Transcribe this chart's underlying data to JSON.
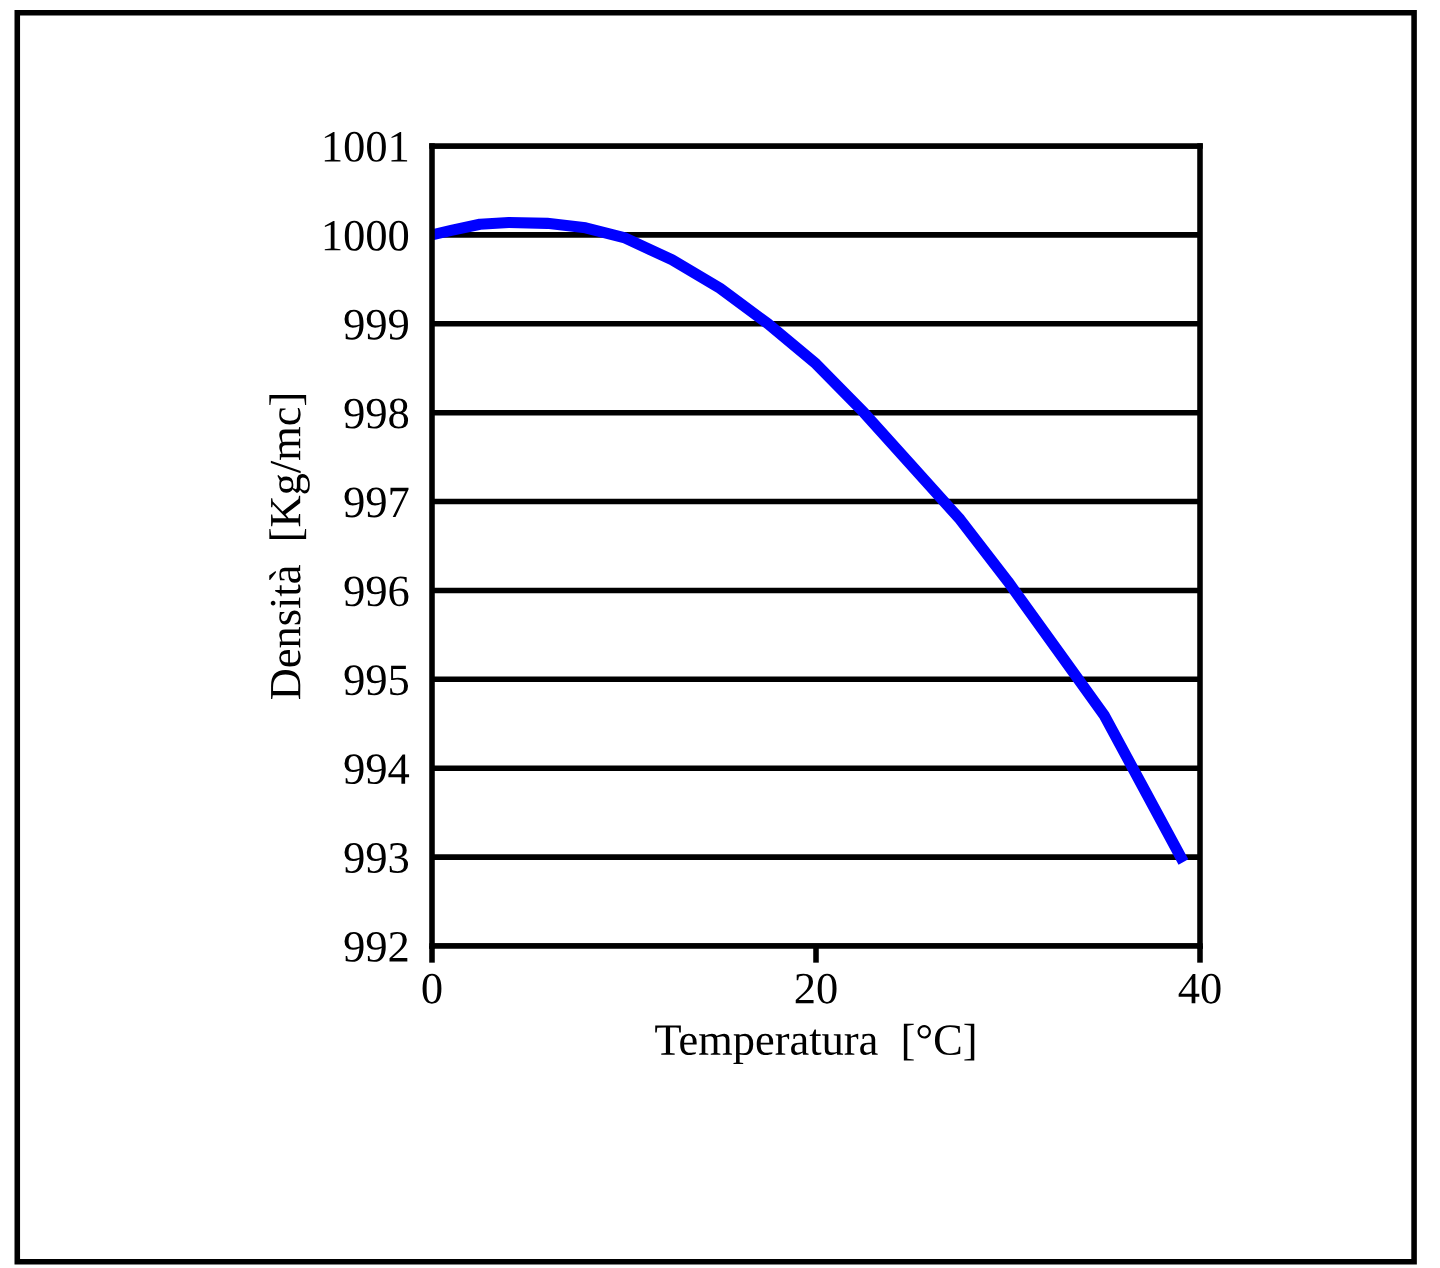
{
  "chart_data": {
    "type": "line",
    "xlabel": "Temperatura  [°C]",
    "ylabel": "Densità  [Kg/mc]",
    "x": [
      0,
      1,
      2.5,
      4,
      6,
      8,
      10,
      12.5,
      15,
      17.5,
      20,
      22.5,
      25,
      27.5,
      30,
      32.5,
      35,
      37,
      39
    ],
    "series": [
      {
        "color": "#0000ff",
        "values": [
          1000,
          1000.05,
          1000.12,
          1000.14,
          1000.13,
          1000.08,
          999.97,
          999.72,
          999.4,
          999.0,
          998.55,
          998.0,
          997.4,
          996.8,
          996.1,
          995.35,
          994.6,
          993.8,
          993.0
        ]
      }
    ],
    "xlim": [
      0,
      40
    ],
    "xticks": [
      0,
      20,
      40
    ],
    "ylim": [
      992,
      1001
    ],
    "yticks": [
      992,
      993,
      994,
      995,
      996,
      997,
      998,
      999,
      1000,
      1001
    ],
    "grid": "y",
    "marker": "none",
    "line_style": "solid"
  }
}
